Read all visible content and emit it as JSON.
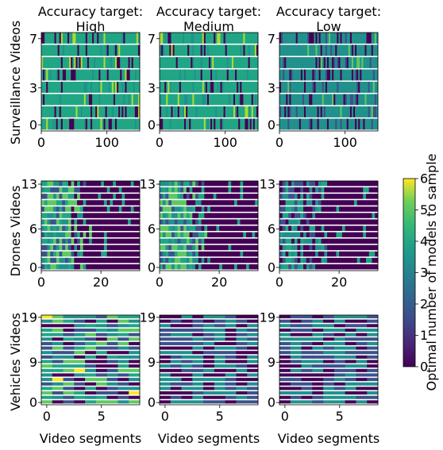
{
  "chart_data": {
    "type": "heatmap",
    "colormap": "viridis",
    "column_titles": [
      {
        "line1": "Accuracy target:",
        "line2": "High"
      },
      {
        "line1": "Accuracy target:",
        "line2": "Medium"
      },
      {
        "line1": "Accuracy target:",
        "line2": "Low"
      }
    ],
    "row_labels": [
      "Surveillance Videos",
      "Drones Videos",
      "Vehicles Videos"
    ],
    "xlabel": "Video segments",
    "colorbar": {
      "label": "Optimal number of models to sample",
      "min": 0,
      "max": 6,
      "ticks": [
        "0",
        "1",
        "2",
        "3",
        "4",
        "5",
        "6"
      ]
    },
    "panel_rows": [
      {
        "n_rows": 8,
        "x_max": 150,
        "y_ticks": [
          0,
          3,
          7
        ],
        "x_ticks": [
          0,
          100
        ]
      },
      {
        "n_rows": 14,
        "x_max": 33,
        "y_ticks": [
          0,
          6,
          13
        ],
        "x_ticks": [
          0,
          20
        ]
      },
      {
        "n_rows": 20,
        "x_max": 9,
        "y_ticks": [
          0,
          9,
          19
        ],
        "x_ticks": [
          0,
          5
        ]
      }
    ],
    "typical_values": {
      "by_accuracy_target": {
        "High": 3,
        "Medium": 3,
        "Low": 2
      },
      "drones_late_segments": 0,
      "vehicles_range": [
        0,
        5
      ]
    }
  }
}
